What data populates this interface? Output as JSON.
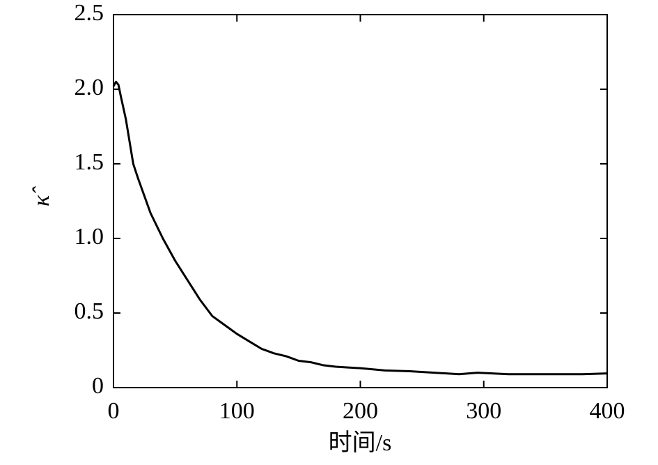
{
  "chart_data": {
    "type": "line",
    "xlabel": "时间/s",
    "ylabel": "κ̂",
    "x": [
      0,
      2,
      4,
      6,
      10,
      16,
      20,
      30,
      40,
      50,
      60,
      70,
      80,
      90,
      100,
      110,
      120,
      130,
      140,
      150,
      160,
      170,
      180,
      190,
      200,
      220,
      240,
      260,
      280,
      295,
      320,
      340,
      360,
      380,
      400
    ],
    "series": [
      {
        "color": "#000000",
        "values": [
          2.02,
          2.05,
          2.03,
          1.95,
          1.8,
          1.5,
          1.4,
          1.17,
          1.0,
          0.85,
          0.72,
          0.59,
          0.48,
          0.42,
          0.36,
          0.31,
          0.26,
          0.23,
          0.21,
          0.18,
          0.17,
          0.15,
          0.14,
          0.135,
          0.13,
          0.115,
          0.11,
          0.1,
          0.09,
          0.1,
          0.09,
          0.09,
          0.09,
          0.09,
          0.095
        ]
      }
    ],
    "xlim": [
      0,
      400
    ],
    "xticks": [
      0,
      100,
      200,
      300,
      400
    ],
    "ylim": [
      0,
      2.5
    ],
    "yticks": [
      0,
      0.5,
      {
        "value": 1,
        "label": "1.0"
      },
      1.5,
      {
        "value": 2,
        "label": "2.0"
      },
      2.5
    ],
    "grid": false
  }
}
